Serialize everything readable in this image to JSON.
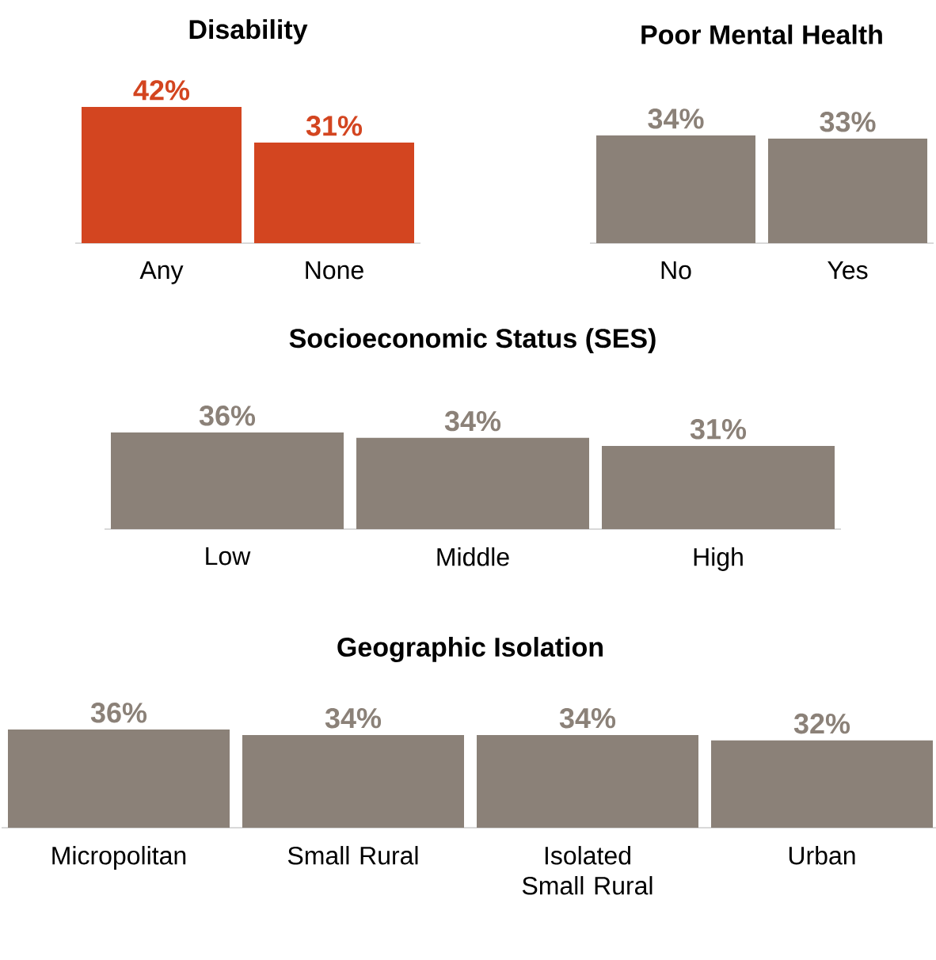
{
  "chart_data": [
    {
      "type": "bar",
      "title": "Disability",
      "categories": [
        "Any",
        "None"
      ],
      "values": [
        42,
        31
      ],
      "value_labels": [
        "42%",
        "31%"
      ],
      "color": "#d34520"
    },
    {
      "type": "bar",
      "title": "Poor Mental Health",
      "categories": [
        "No",
        "Yes"
      ],
      "values": [
        34,
        33
      ],
      "value_labels": [
        "34%",
        "33%"
      ],
      "color": "#8b8178"
    },
    {
      "type": "bar",
      "title": "Socioeconomic Status (SES)",
      "categories": [
        "Low",
        "Middle",
        "High"
      ],
      "values": [
        36,
        34,
        31
      ],
      "value_labels": [
        "36%",
        "34%",
        "31%"
      ],
      "color": "#8b8178"
    },
    {
      "type": "bar",
      "title": "Geographic Isolation",
      "categories": [
        "Micropolitan",
        "Small Rural",
        "Isolated Small Rural",
        "Urban"
      ],
      "values": [
        36,
        34,
        34,
        32
      ],
      "value_labels": [
        "36%",
        "34%",
        "34%",
        "32%"
      ],
      "color": "#8b8178"
    }
  ]
}
